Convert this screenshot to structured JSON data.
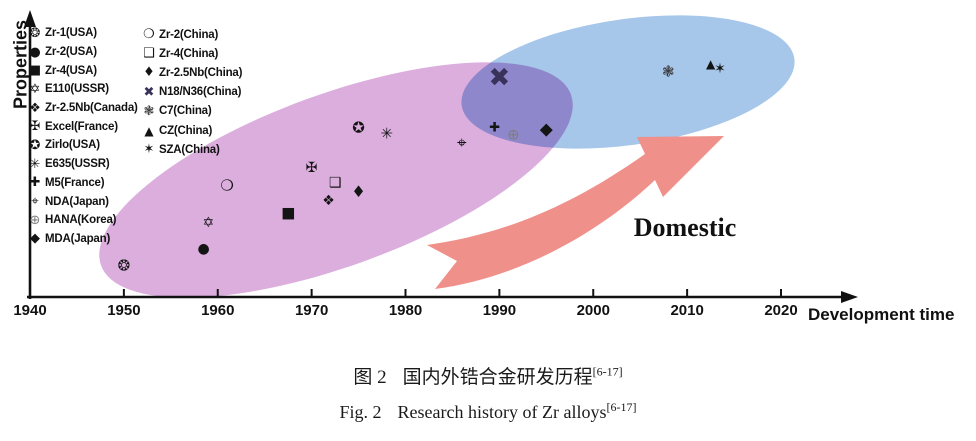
{
  "figure_title": "Research history of Zr alloys",
  "chart_data": {
    "type": "scatter",
    "xlabel": "Development time",
    "ylabel": "Properties",
    "x_ticks": [
      1940,
      1950,
      1960,
      1970,
      1980,
      1990,
      2000,
      2010,
      2020
    ],
    "x_range": [
      1940,
      2026
    ],
    "y_range_note": "Properties axis is unlabeled; values below are relative 0-100 estimates",
    "grid": false,
    "annotation": {
      "label": "Domestic",
      "arrow_color": "#f0908a"
    },
    "regions": [
      {
        "name": "foreign-alloys-ellipse",
        "color": "#dcaede",
        "approx_year_span": [
          1946,
          1998
        ]
      },
      {
        "name": "domestic-alloys-ellipse",
        "color": "#a6c6ea",
        "approx_year_span": [
          1986,
          2021
        ]
      }
    ],
    "series": [
      {
        "name": "foreign",
        "points": [
          {
            "alloy": "Zr-1(USA)",
            "symbol": "❂",
            "color": "#141414",
            "size": 15,
            "year": 1950.0,
            "properties": 11.0
          },
          {
            "alloy": "Zr-2(USA)",
            "symbol": "●",
            "color": "#141414",
            "size": 14,
            "year": 1958.5,
            "properties": 17.0
          },
          {
            "alloy": "Zr-4(USA)",
            "symbol": "■",
            "color": "#141414",
            "size": 15,
            "year": 1967.5,
            "properties": 30.0
          },
          {
            "alloy": "E110(USSR)",
            "symbol": "✡",
            "color": "#141414",
            "size": 14,
            "year": 1959.0,
            "properties": 26.5
          },
          {
            "alloy": "Zr-2.5Nb(Canada)",
            "symbol": "❖",
            "color": "#141414",
            "size": 14,
            "year": 1971.8,
            "properties": 34.0
          },
          {
            "alloy": "Excel(France)",
            "symbol": "✠",
            "color": "#141414",
            "size": 14,
            "year": 1970.0,
            "properties": 46.0
          },
          {
            "alloy": "Zirlo(USA)",
            "symbol": "✪",
            "color": "#141414",
            "size": 15,
            "year": 1975.0,
            "properties": 60.0
          },
          {
            "alloy": "E635(USSR)",
            "symbol": "✳",
            "color": "#141414",
            "size": 15,
            "year": 1978.0,
            "properties": 58.0
          },
          {
            "alloy": "M5(France)",
            "symbol": "✚",
            "color": "#141414",
            "size": 13,
            "year": 1989.5,
            "properties": 60.0
          },
          {
            "alloy": "NDA(Japan)",
            "symbol": "⌖",
            "color": "#141414",
            "size": 17,
            "year": 1986.0,
            "properties": 54.5
          },
          {
            "alloy": "HANA(Korea)",
            "symbol": "⊕",
            "color": "#7d7d7d",
            "size": 15,
            "year": 1991.5,
            "properties": 57.5
          },
          {
            "alloy": "MDA(Japan)",
            "symbol": "◆",
            "color": "#141414",
            "size": 17,
            "year": 1995.0,
            "properties": 59.5
          }
        ]
      },
      {
        "name": "china",
        "points": [
          {
            "alloy": "Zr-2(China)",
            "symbol": "❍",
            "color": "#141414",
            "size": 15,
            "year": 1961.0,
            "properties": 39.5
          },
          {
            "alloy": "Zr-4(China)",
            "symbol": "❑",
            "color": "#141414",
            "size": 14,
            "year": 1972.5,
            "properties": 40.5
          },
          {
            "alloy": "Zr-2.5Nb(China)",
            "symbol": "♦",
            "color": "#141414",
            "size": 16,
            "year": 1975.0,
            "properties": 37.5
          },
          {
            "alloy": "N18/N36(China)",
            "symbol": "✖",
            "color": "#39325a",
            "size": 26,
            "year": 1990.0,
            "properties": 78.0
          },
          {
            "alloy": "C7(China)",
            "symbol": "❃",
            "color": "#3a3a3a",
            "size": 15,
            "year": 2008.0,
            "properties": 80.0
          },
          {
            "alloy": "CZ(China)",
            "symbol": "▲",
            "color": "#141414",
            "size": 12,
            "year": 2012.5,
            "properties": 83.0
          },
          {
            "alloy": "SZA(China)",
            "symbol": "✶",
            "color": "#141414",
            "size": 14,
            "year": 2013.5,
            "properties": 81.0
          }
        ]
      }
    ]
  },
  "captions": {
    "zh_prefix": "图 2",
    "zh_text": "国内外锆合金研发历程",
    "en_prefix": "Fig. 2",
    "en_text": "Research history of Zr alloys",
    "ref": "[6-17]"
  }
}
